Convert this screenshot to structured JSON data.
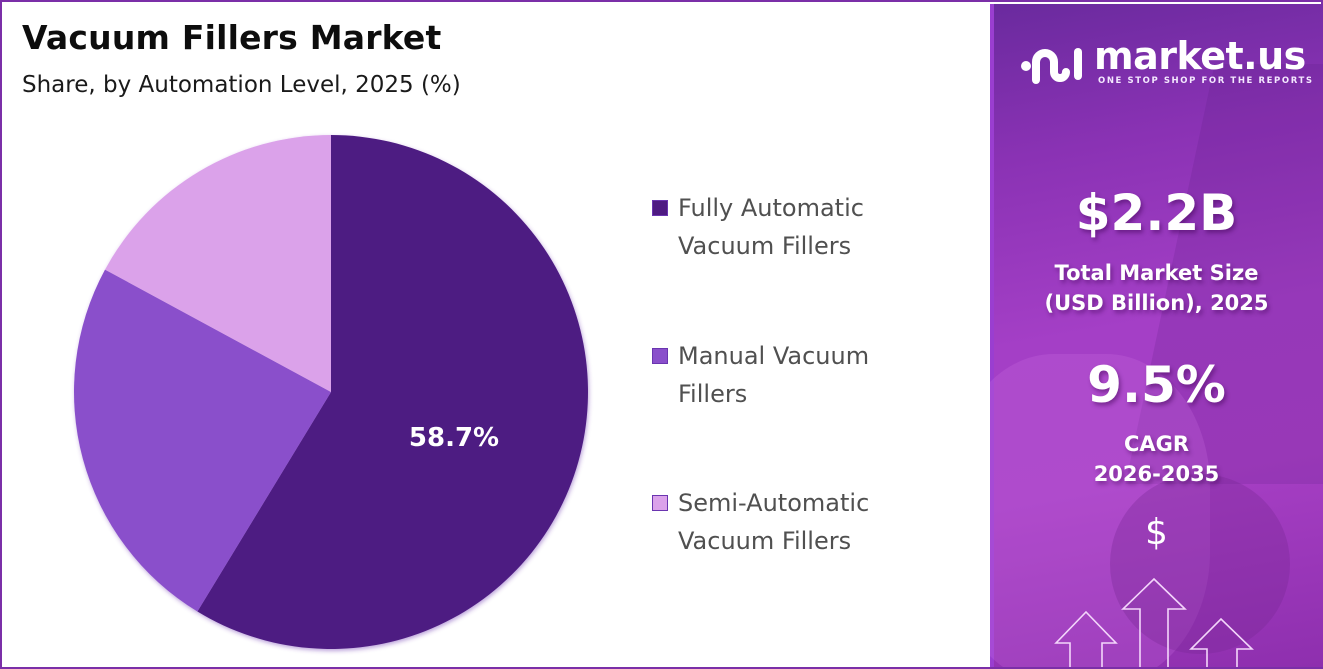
{
  "header": {
    "title": "Vacuum Fillers Market",
    "subtitle": "Share, by Automation Level, 2025 (%)"
  },
  "legend": {
    "items": [
      {
        "line1": "Fully Automatic",
        "line2": "Vacuum Fillers",
        "color": "#4e1a82"
      },
      {
        "line1": "Manual Vacuum",
        "line2": "Fillers",
        "color": "#8a4fcb"
      },
      {
        "line1": "Semi-Automatic",
        "line2": "Vacuum Fillers",
        "color": "#dba2ea"
      }
    ]
  },
  "pie_label": "58.7%",
  "sidebar": {
    "brand": "market.us",
    "tagline": "ONE STOP SHOP FOR THE REPORTS",
    "market_size_value": "$2.2B",
    "market_size_caption_line1": "Total Market Size",
    "market_size_caption_line2": "(USD Billion), 2025",
    "cagr_value": "9.5%",
    "cagr_caption_line1": "CAGR",
    "cagr_caption_line2": "2026-2035",
    "dollar_icon": "$"
  },
  "colors": {
    "accent_border": "#7b2fa8",
    "fully_automatic": "#4e1a82",
    "manual": "#8a4fcb",
    "semi_automatic": "#dba2ea"
  },
  "chart_data": {
    "type": "pie",
    "title": "Vacuum Fillers Market",
    "subtitle": "Share, by Automation Level, 2025 (%)",
    "categories": [
      "Fully Automatic Vacuum Fillers",
      "Manual Vacuum Fillers",
      "Semi-Automatic Vacuum Fillers"
    ],
    "values": [
      58.7,
      24.2,
      17.1
    ],
    "labels_shown": {
      "Fully Automatic Vacuum Fillers": "58.7%"
    },
    "colors": [
      "#4e1a82",
      "#8a4fcb",
      "#dba2ea"
    ],
    "legend_position": "right",
    "start_angle": "12 o'clock, clockwise"
  }
}
